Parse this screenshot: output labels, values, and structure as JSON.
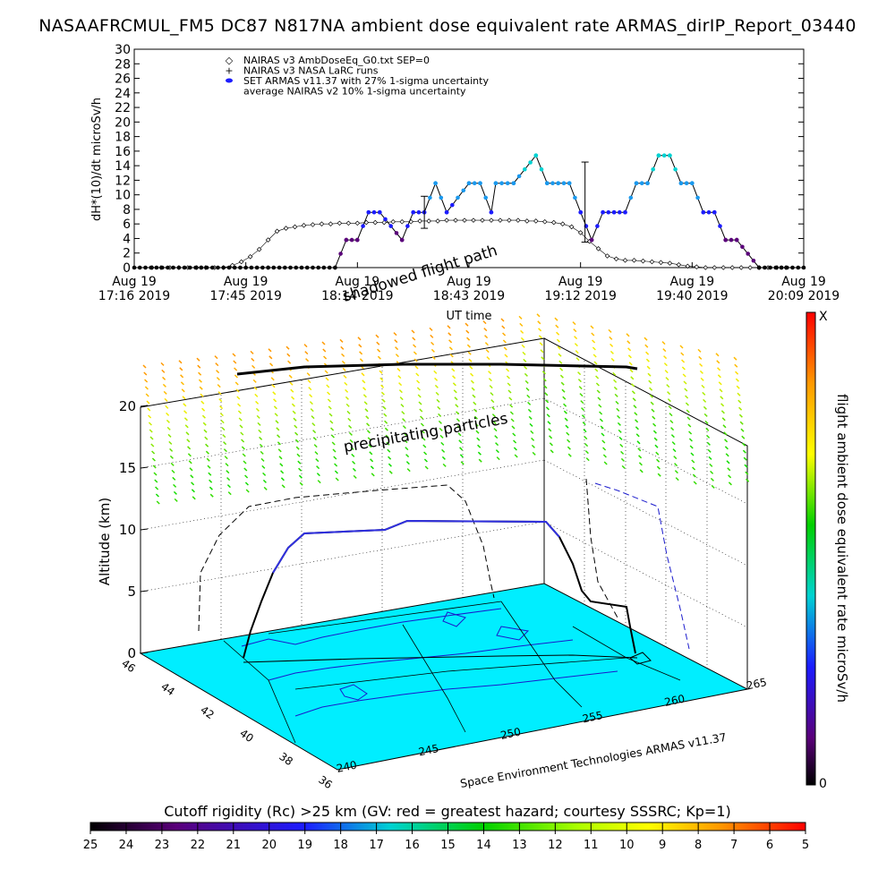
{
  "title": "NASAAFRCMUL_FM5 DC87 N817NA ambient dose equivalent rate ARMAS_dirIP_Report_03440",
  "chart_data": [
    {
      "type": "line",
      "ylabel": "dH*(10)/dt microSv/h",
      "xlabel": "UT time",
      "ylim": [
        0,
        30
      ],
      "y_ticks": [
        "0",
        "2",
        "4",
        "6",
        "8",
        "10",
        "12",
        "14",
        "16",
        "18",
        "20",
        "22",
        "24",
        "26",
        "28",
        "30"
      ],
      "x_ticks": [
        {
          "top": "Aug 19",
          "bottom": "17:16 2019"
        },
        {
          "top": "Aug 19",
          "bottom": "17:45 2019"
        },
        {
          "top": "Aug 19",
          "bottom": "18:14 2019"
        },
        {
          "top": "Aug 19",
          "bottom": "18:43 2019"
        },
        {
          "top": "Aug 19",
          "bottom": "19:12 2019"
        },
        {
          "top": "Aug 19",
          "bottom": "19:40 2019"
        },
        {
          "top": "Aug 19",
          "bottom": "20:09 2019"
        }
      ],
      "legend": [
        {
          "symbol": "◇",
          "label": "NAIRAS v3 AmbDoseEq_G0.txt SEP=0"
        },
        {
          "symbol": "+",
          "label": "NAIRAS v3 NASA LaRC runs"
        },
        {
          "symbol": "●",
          "label": "SET ARMAS v11.37 with 27% 1-sigma uncertainty"
        },
        {
          "symbol": "",
          "label": "average NAIRAS v2 10% 1-sigma uncertainty"
        }
      ],
      "legend_position": "top-left",
      "series_nairas": {
        "x": [
          0.08,
          0.12,
          0.16,
          0.2,
          0.24,
          0.28,
          0.32,
          0.36,
          0.4,
          0.44,
          0.48,
          0.52,
          0.56,
          0.6,
          0.64,
          0.68,
          0.72,
          0.76,
          0.8,
          0.84,
          0.88,
          0.92,
          0.96,
          1.0,
          1.04,
          1.08,
          1.12,
          1.16,
          1.2,
          1.24,
          1.28,
          1.32,
          1.36,
          1.4,
          1.44,
          1.48,
          1.52,
          1.56,
          1.6,
          1.64,
          1.68,
          1.72,
          1.76,
          1.8,
          1.84,
          1.88,
          1.92,
          1.96,
          2.0,
          2.04,
          2.08,
          2.12,
          2.16,
          2.2,
          2.24,
          2.28,
          2.32,
          2.36,
          2.4,
          2.44,
          2.48,
          2.52,
          2.56,
          2.6,
          2.64,
          2.68,
          2.72,
          2.76,
          2.8,
          2.84,
          2.88,
          2.92
        ],
        "y": [
          0,
          0,
          0,
          0,
          0,
          0,
          0,
          0,
          0,
          0.3,
          0.8,
          1.5,
          2.5,
          3.8,
          5.0,
          5.4,
          5.6,
          5.8,
          5.9,
          6.0,
          6.0,
          6.1,
          6.1,
          6.1,
          6.2,
          6.2,
          6.2,
          6.3,
          6.3,
          6.3,
          6.4,
          6.4,
          6.4,
          6.5,
          6.5,
          6.5,
          6.5,
          6.5,
          6.5,
          6.5,
          6.5,
          6.5,
          6.4,
          6.4,
          6.3,
          6.2,
          6.0,
          5.6,
          4.8,
          3.6,
          2.6,
          1.6,
          1.2,
          1.0,
          1.0,
          0.9,
          0.8,
          0.7,
          0.6,
          0.4,
          0.2,
          0.1,
          0,
          0,
          0,
          0,
          0,
          0,
          0,
          0,
          0,
          0
        ]
      },
      "series_armas": {
        "x": [
          0,
          0.3,
          0.6,
          0.9,
          0.95,
          1.0,
          1.05,
          1.1,
          1.2,
          1.25,
          1.3,
          1.35,
          1.4,
          1.5,
          1.55,
          1.6,
          1.62,
          1.7,
          1.8,
          1.85,
          1.9,
          1.95,
          2.0,
          2.05,
          2.1,
          2.15,
          2.2,
          2.25,
          2.3,
          2.35,
          2.4,
          2.45,
          2.5,
          2.55,
          2.6,
          2.65,
          2.7,
          2.8,
          2.9,
          3.0
        ],
        "y": [
          0,
          0,
          0,
          0,
          3.8,
          3.8,
          7.6,
          7.6,
          3.8,
          7.6,
          7.6,
          11.6,
          7.6,
          11.6,
          11.6,
          7.6,
          11.6,
          11.6,
          15.4,
          11.6,
          11.6,
          11.6,
          7.6,
          3.8,
          7.6,
          7.6,
          7.6,
          11.6,
          11.6,
          15.4,
          15.4,
          11.6,
          11.6,
          7.6,
          7.6,
          3.8,
          3.8,
          0,
          0,
          0
        ]
      },
      "error_bars": [
        {
          "x": 1.3,
          "y": 7.6,
          "err": 2.2
        },
        {
          "x": 2.02,
          "y": 9.0,
          "err": 5.5
        }
      ]
    },
    {
      "type": "scatter",
      "title": "shadowed flight path",
      "zlabel": "Altitude (km)",
      "z_ticks": [
        "0",
        "5",
        "10",
        "15",
        "20"
      ],
      "lat_ticks": [
        "46",
        "44",
        "42",
        "40",
        "38",
        "36"
      ],
      "lon_ticks": [
        "240",
        "245",
        "250",
        "255",
        "260",
        "265"
      ],
      "annotations": [
        "precipitating particles",
        "Space Environment Technologies ARMAS v11.37"
      ],
      "colorbar_label": "flight ambient dose equivalent rate microSv/h",
      "colorbar_top": "X",
      "colorbar_bottom": "0"
    },
    {
      "type": "heatmap",
      "title": "Cutoff rigidity (Rc) >25 km (GV: red = greatest hazard; courtesy SSSRC; Kp=1)",
      "ticks": [
        "25",
        "24",
        "23",
        "22",
        "21",
        "20",
        "19",
        "18",
        "17",
        "16",
        "15",
        "14",
        "13",
        "12",
        "11",
        "10",
        "9",
        "8",
        "7",
        "6",
        "5"
      ]
    }
  ]
}
